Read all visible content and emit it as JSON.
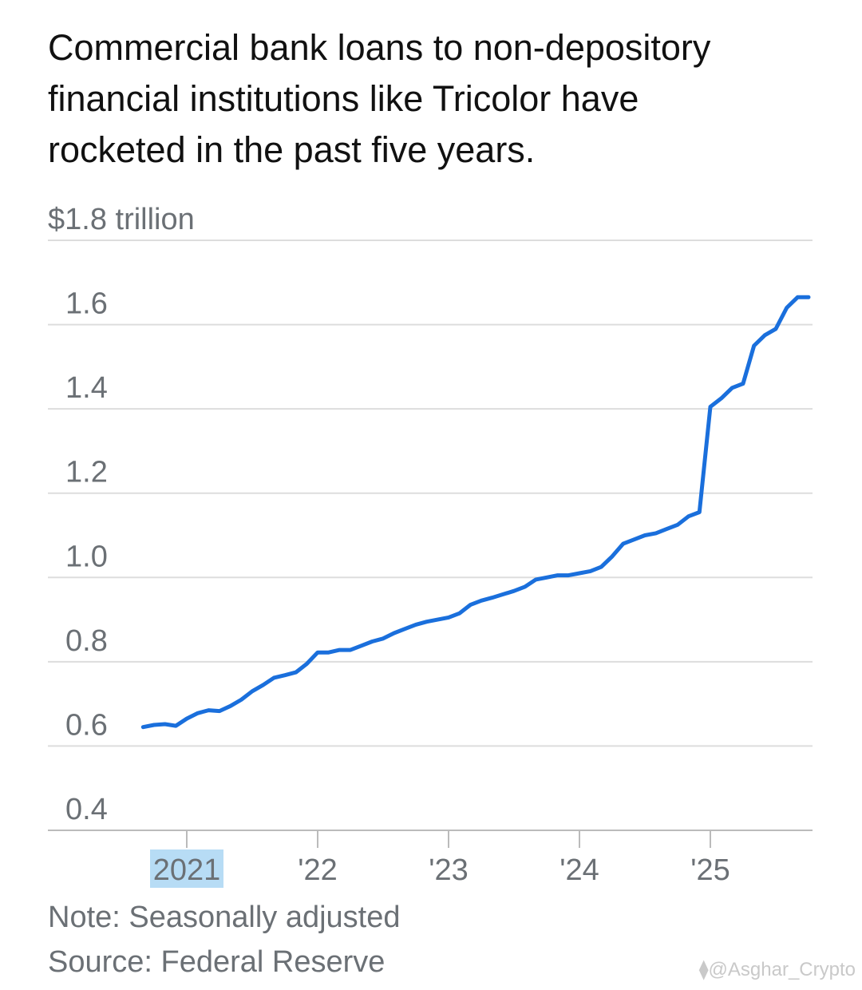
{
  "title_lines": [
    "Commercial bank loans to non-depository",
    "financial institutions like Tricolor have",
    "rocketed in the past five years."
  ],
  "note": "Note: Seasonally adjusted",
  "source": "Source: Federal Reserve",
  "watermark": "⧫@Asghar_Crypto",
  "colors": {
    "line": "#1a6fdc",
    "grid": "#dddddd",
    "axis": "#bbbbbb",
    "text": "#6b7075",
    "highlight": "#b7dcf5"
  },
  "chart_data": {
    "type": "line",
    "title": "Commercial bank loans to non-depository financial institutions like Tricolor have rocketed in the past five years.",
    "ylabel": "$1.8 trillion",
    "ylim": [
      0.4,
      1.8
    ],
    "xlim": [
      "2020-08",
      "2025-10"
    ],
    "y_ticks": [
      {
        "value": 1.8,
        "label": "$1.8 trillion"
      },
      {
        "value": 1.6,
        "label": "1.6"
      },
      {
        "value": 1.4,
        "label": "1.4"
      },
      {
        "value": 1.2,
        "label": "1.2"
      },
      {
        "value": 1.0,
        "label": "1.0"
      },
      {
        "value": 0.8,
        "label": "0.8"
      },
      {
        "value": 0.6,
        "label": "0.6"
      },
      {
        "value": 0.4,
        "label": "0.4"
      }
    ],
    "x_ticks": [
      {
        "value": "2021-01",
        "label": "2021",
        "highlight": true
      },
      {
        "value": "2022-01",
        "label": "'22"
      },
      {
        "value": "2023-01",
        "label": "'23"
      },
      {
        "value": "2024-01",
        "label": "'24"
      },
      {
        "value": "2025-01",
        "label": "'25"
      }
    ],
    "grid": true,
    "series": [
      {
        "values": [
          [
            "2020-09",
            0.645
          ],
          [
            "2020-10",
            0.65
          ],
          [
            "2020-11",
            0.652
          ],
          [
            "2020-12",
            0.648
          ],
          [
            "2021-01",
            0.665
          ],
          [
            "2021-02",
            0.678
          ],
          [
            "2021-03",
            0.685
          ],
          [
            "2021-04",
            0.683
          ],
          [
            "2021-05",
            0.695
          ],
          [
            "2021-06",
            0.71
          ],
          [
            "2021-07",
            0.73
          ],
          [
            "2021-08",
            0.745
          ],
          [
            "2021-09",
            0.762
          ],
          [
            "2021-10",
            0.768
          ],
          [
            "2021-11",
            0.775
          ],
          [
            "2021-12",
            0.795
          ],
          [
            "2022-01",
            0.822
          ],
          [
            "2022-02",
            0.822
          ],
          [
            "2022-03",
            0.828
          ],
          [
            "2022-04",
            0.828
          ],
          [
            "2022-05",
            0.838
          ],
          [
            "2022-06",
            0.848
          ],
          [
            "2022-07",
            0.855
          ],
          [
            "2022-08",
            0.868
          ],
          [
            "2022-09",
            0.878
          ],
          [
            "2022-10",
            0.888
          ],
          [
            "2022-11",
            0.895
          ],
          [
            "2022-12",
            0.9
          ],
          [
            "2023-01",
            0.905
          ],
          [
            "2023-02",
            0.915
          ],
          [
            "2023-03",
            0.935
          ],
          [
            "2023-04",
            0.945
          ],
          [
            "2023-05",
            0.952
          ],
          [
            "2023-06",
            0.96
          ],
          [
            "2023-07",
            0.968
          ],
          [
            "2023-08",
            0.978
          ],
          [
            "2023-09",
            0.995
          ],
          [
            "2023-10",
            1.0
          ],
          [
            "2023-11",
            1.005
          ],
          [
            "2023-12",
            1.005
          ],
          [
            "2024-01",
            1.01
          ],
          [
            "2024-02",
            1.015
          ],
          [
            "2024-03",
            1.025
          ],
          [
            "2024-04",
            1.05
          ],
          [
            "2024-05",
            1.08
          ],
          [
            "2024-06",
            1.09
          ],
          [
            "2024-07",
            1.1
          ],
          [
            "2024-08",
            1.105
          ],
          [
            "2024-09",
            1.115
          ],
          [
            "2024-10",
            1.125
          ],
          [
            "2024-11",
            1.145
          ],
          [
            "2024-12",
            1.155
          ],
          [
            "2025-01",
            1.405
          ],
          [
            "2025-02",
            1.425
          ],
          [
            "2025-03",
            1.45
          ],
          [
            "2025-04",
            1.46
          ],
          [
            "2025-05",
            1.55
          ],
          [
            "2025-06",
            1.575
          ],
          [
            "2025-07",
            1.59
          ],
          [
            "2025-08",
            1.64
          ],
          [
            "2025-09",
            1.665
          ],
          [
            "2025-10",
            1.665
          ]
        ]
      }
    ]
  }
}
